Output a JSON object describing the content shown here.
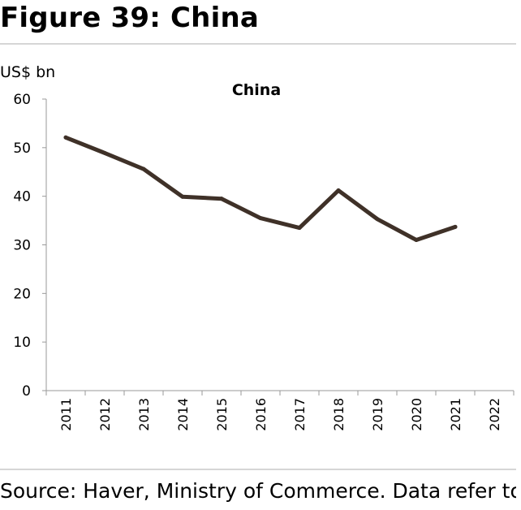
{
  "figure": {
    "title": "Figure 39: China",
    "source": "Source: Haver, Ministry of Commerce. Data refer to"
  },
  "chart_data": {
    "type": "line",
    "title": "China",
    "ylabel": "US$ bn",
    "xlabel": "",
    "ylim": [
      0,
      60
    ],
    "yticks": [
      0,
      10,
      20,
      30,
      40,
      50,
      60
    ],
    "categories": [
      "2011",
      "2012",
      "2013",
      "2014",
      "2015",
      "2016",
      "2017",
      "2018",
      "2019",
      "2020",
      "2021",
      "2022"
    ],
    "series": [
      {
        "values": [
          52.1,
          48.9,
          45.6,
          39.9,
          39.5,
          35.5,
          33.5,
          41.2,
          35.3,
          31.0,
          33.7,
          null
        ]
      }
    ],
    "line_color": "#3f3128",
    "grid": false,
    "legend": "none"
  }
}
